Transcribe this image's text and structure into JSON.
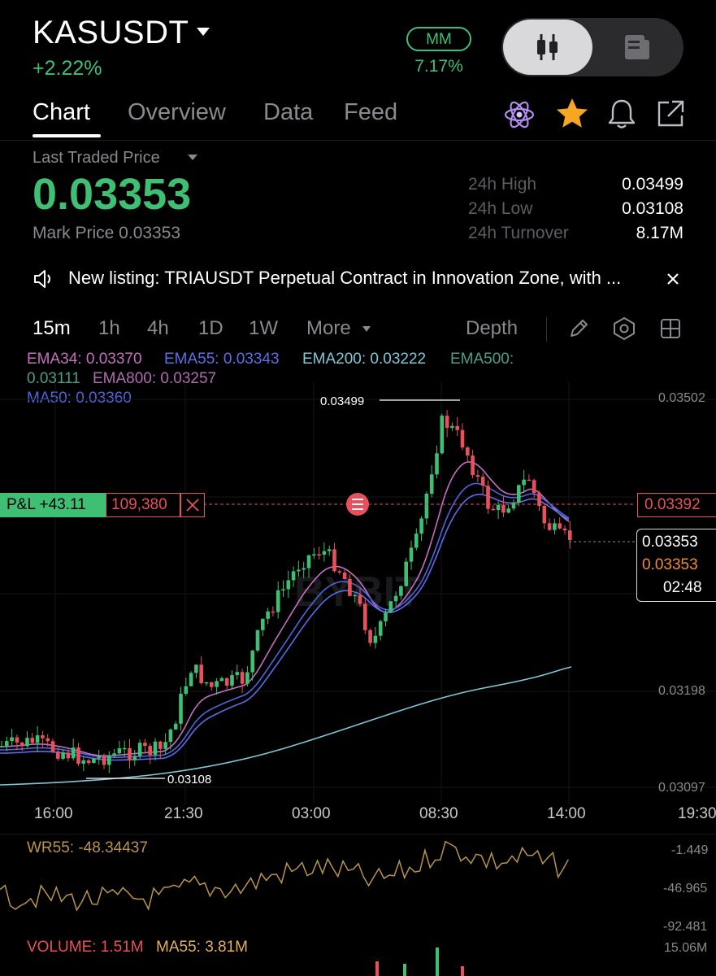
{
  "header": {
    "symbol": "KASUSDT",
    "change": "+2.22%",
    "mm_label": "MM",
    "mm_value": "7.17%"
  },
  "tabs": [
    "Chart",
    "Overview",
    "Data",
    "Feed"
  ],
  "price_panel": {
    "label": "Last Traded Price",
    "price": "0.03353",
    "mark_price": "Mark Price 0.03353",
    "stats": [
      {
        "label": "24h High",
        "value": "0.03499"
      },
      {
        "label": "24h Low",
        "value": "0.03108"
      },
      {
        "label": "24h Turnover",
        "value": "8.17M"
      }
    ]
  },
  "announcement": "New listing: TRIAUSDT Perpetual Contract in Innovation Zone, with ...",
  "toolbar": {
    "intervals": [
      "15m",
      "1h",
      "4h",
      "1D",
      "1W"
    ],
    "more": "More",
    "depth": "Depth"
  },
  "indicators": {
    "ema34": "EMA34: 0.03370",
    "ema55": "EMA55: 0.03343",
    "ema200": "EMA200: 0.03222",
    "ema500": "EMA500:",
    "ema500_val": "0.03111",
    "ema800": "EMA800: 0.03257",
    "ma50": "MA50: 0.03360"
  },
  "price_axis": [
    "0.03502",
    "0.03198",
    "0.03097"
  ],
  "time_axis": [
    "16:00",
    "21:30",
    "03:00",
    "08:30",
    "14:00",
    "19:30"
  ],
  "chart_marks": {
    "high": "0.03499",
    "low": "0.03108"
  },
  "position": {
    "pnl": "P&L +43.11",
    "qty": "109,380",
    "entry": "0.03392"
  },
  "last_price_box": {
    "last": "0.03353",
    "mark": "0.03353",
    "countdown": "02:48"
  },
  "wr": {
    "label": "WR55: -48.34437",
    "ticks": [
      "-1.449",
      "-46.965",
      "-92.481"
    ]
  },
  "volume": {
    "label": "VOLUME: 1.51M",
    "ma": "MA55: 3.81M",
    "tick": "15.06M"
  },
  "watermark": "BYBIT",
  "colors": {
    "up": "#3fbf73",
    "down": "#e8505b",
    "ema34": "#c46fc0",
    "ema55": "#5b6ee8",
    "ema200": "#7fc8d8",
    "ema500": "#4a9e88",
    "ema800": "#b06bb0",
    "ma50": "#4f64e0",
    "wr": "#b8954a"
  }
}
